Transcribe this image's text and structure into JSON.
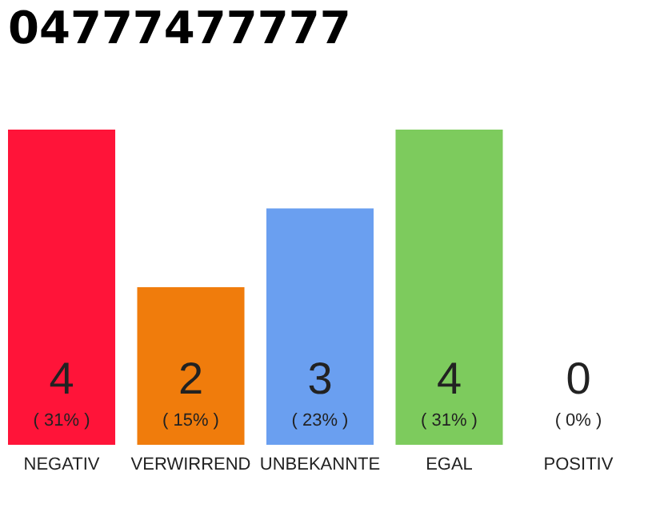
{
  "chart_data": {
    "type": "bar",
    "title": "04777477777",
    "categories": [
      "NEGATIV",
      "VERWIRREND",
      "UNBEKANNTE",
      "EGAL",
      "POSITIV"
    ],
    "values": [
      4,
      2,
      3,
      4,
      0
    ],
    "colors": [
      "#ff1439",
      "#f07c0c",
      "#6a9ff0",
      "#7dcb5d",
      "#d0d0d0"
    ],
    "value_labels": [
      "4",
      "2",
      "3",
      "4",
      "0"
    ],
    "annotations": [
      "( 31% )",
      "( 15% )",
      "( 23% )",
      "( 31% )",
      "( 0% )"
    ],
    "tick_labels": "x",
    "grid": false
  }
}
